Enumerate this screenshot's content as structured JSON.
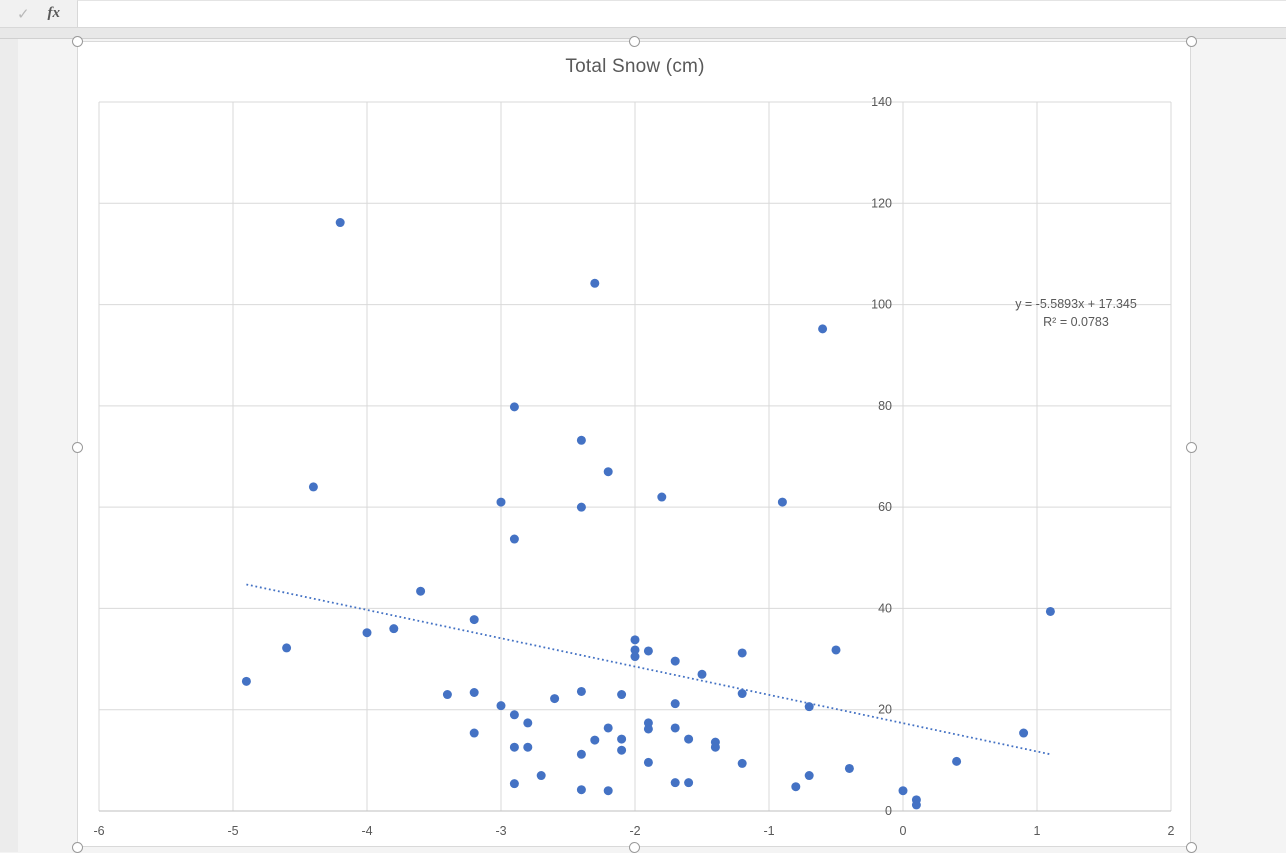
{
  "formula_bar": {
    "check_icon": "✓",
    "fx_icon_label": "fx",
    "input_value": "",
    "input_placeholder": ""
  },
  "chart_data": {
    "type": "scatter",
    "title": "Total Snow (cm)",
    "xlabel": "",
    "ylabel": "",
    "xlim": [
      -6,
      2
    ],
    "ylim": [
      0,
      140
    ],
    "x_ticks": [
      -6,
      -5,
      -4,
      -3,
      -2,
      -1,
      0,
      1,
      2
    ],
    "y_ticks": [
      0,
      20,
      40,
      60,
      80,
      100,
      120,
      140
    ],
    "grid": true,
    "legend": "none",
    "point_color": "#4472C4",
    "gridline_color": "#D9D9D9",
    "axis_line_color": "#BFBFBF",
    "text_color": "#595959",
    "series": [
      {
        "name": "Total Snow (cm)",
        "points": [
          [
            -4.2,
            116.2
          ],
          [
            -2.3,
            104.2
          ],
          [
            -0.6,
            95.2
          ],
          [
            -2.9,
            79.8
          ],
          [
            -2.4,
            73.2
          ],
          [
            -2.2,
            67.0
          ],
          [
            -4.4,
            64.0
          ],
          [
            -1.8,
            62.0
          ],
          [
            -3.0,
            61.0
          ],
          [
            -0.9,
            61.0
          ],
          [
            -2.4,
            60.0
          ],
          [
            -2.9,
            53.7
          ],
          [
            -3.6,
            43.4
          ],
          [
            1.1,
            39.4
          ],
          [
            -3.2,
            37.8
          ],
          [
            -3.8,
            36.0
          ],
          [
            -4.0,
            35.2
          ],
          [
            -2.0,
            33.8
          ],
          [
            -4.6,
            32.2
          ],
          [
            -2.0,
            31.8
          ],
          [
            -1.9,
            31.6
          ],
          [
            -0.5,
            31.8
          ],
          [
            -1.2,
            31.2
          ],
          [
            -2.0,
            30.5
          ],
          [
            -1.7,
            29.6
          ],
          [
            -1.5,
            27.0
          ],
          [
            -4.9,
            25.6
          ],
          [
            -3.4,
            23.0
          ],
          [
            -3.2,
            23.4
          ],
          [
            -2.4,
            23.6
          ],
          [
            -1.2,
            23.2
          ],
          [
            -2.6,
            22.2
          ],
          [
            -2.1,
            23.0
          ],
          [
            -3.0,
            20.8
          ],
          [
            -0.7,
            20.6
          ],
          [
            -1.7,
            21.2
          ],
          [
            -2.9,
            19.0
          ],
          [
            -2.8,
            17.4
          ],
          [
            -1.9,
            17.4
          ],
          [
            -1.9,
            16.2
          ],
          [
            -2.2,
            16.4
          ],
          [
            -1.7,
            16.4
          ],
          [
            0.9,
            15.4
          ],
          [
            -3.2,
            15.4
          ],
          [
            -2.3,
            14.0
          ],
          [
            -2.1,
            14.2
          ],
          [
            -1.6,
            14.2
          ],
          [
            -2.9,
            12.6
          ],
          [
            -2.8,
            12.6
          ],
          [
            -2.1,
            12.0
          ],
          [
            -2.4,
            11.2
          ],
          [
            -1.4,
            13.6
          ],
          [
            -1.4,
            12.6
          ],
          [
            -1.9,
            9.6
          ],
          [
            -1.2,
            9.4
          ],
          [
            -0.4,
            8.4
          ],
          [
            0.4,
            9.8
          ],
          [
            -0.7,
            7.0
          ],
          [
            -2.7,
            7.0
          ],
          [
            -2.9,
            5.4
          ],
          [
            -1.6,
            5.6
          ],
          [
            -1.7,
            5.6
          ],
          [
            -2.4,
            4.2
          ],
          [
            -2.2,
            4.0
          ],
          [
            -0.8,
            4.8
          ],
          [
            0.0,
            4.0
          ],
          [
            0.1,
            2.2
          ],
          [
            0.1,
            1.2
          ]
        ]
      }
    ],
    "trendline": {
      "type": "linear",
      "style": "dotted",
      "slope": -5.5893,
      "intercept": 17.345,
      "x_range": [
        -4.9,
        1.1
      ],
      "equation": "y = -5.5893x + 17.345",
      "r2": "R² = 0.0783"
    }
  }
}
